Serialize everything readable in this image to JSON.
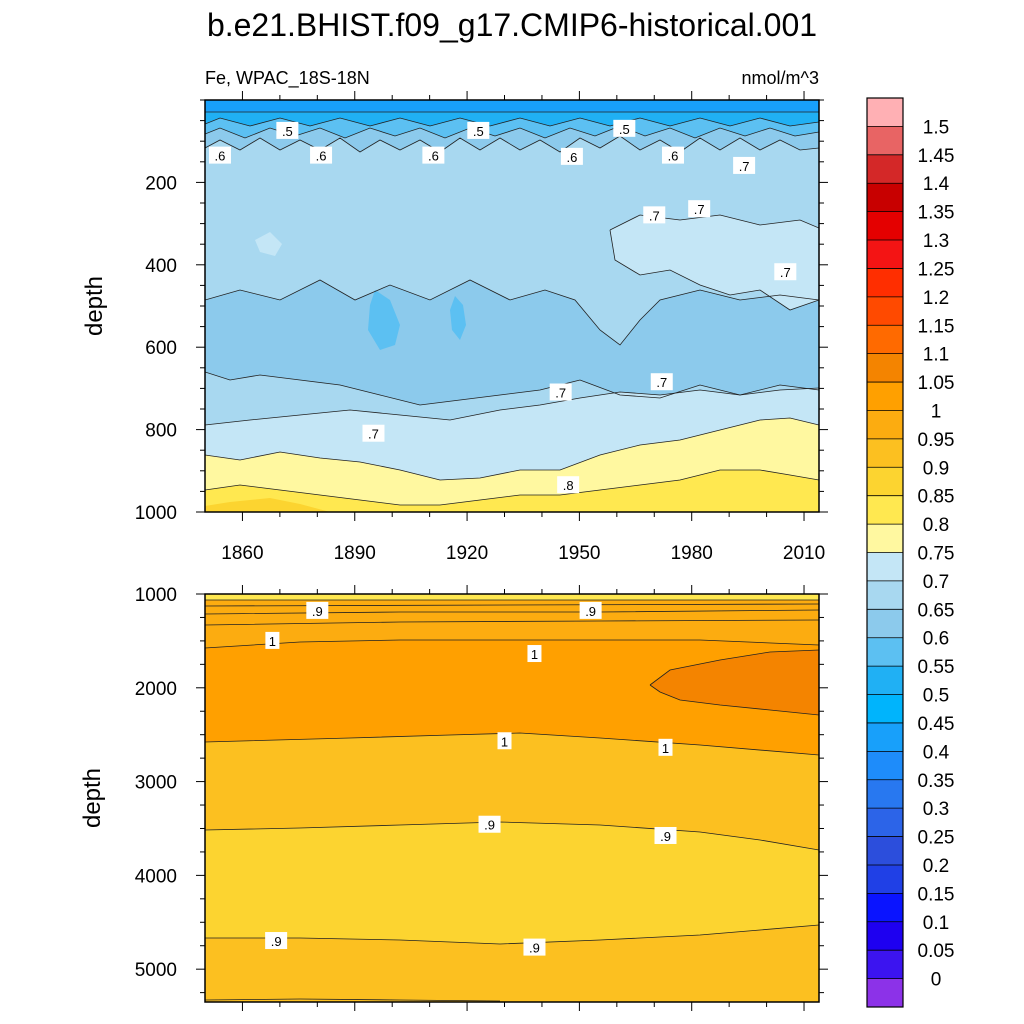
{
  "figure": {
    "title": "b.e21.BHIST.f09_g17.CMIP6-historical.001",
    "variable_label": "Fe, WPAC_18S-18N",
    "units_label": "nmol/m^3"
  },
  "chart_data": [
    {
      "type": "contour",
      "panel": "upper",
      "xlabel": "",
      "ylabel": "depth",
      "xlim": [
        1850,
        2014
      ],
      "ylim": [
        1000,
        0
      ],
      "xticks": [
        1860,
        1890,
        1920,
        1950,
        1980,
        2010
      ],
      "yticks": [
        200,
        400,
        600,
        800,
        1000
      ],
      "contour_labels": [
        {
          "text": ".5",
          "x": 1872,
          "y": 75
        },
        {
          "text": ".5",
          "x": 1923,
          "y": 75
        },
        {
          "text": ".5",
          "x": 1962,
          "y": 70
        },
        {
          "text": ".6",
          "x": 1854,
          "y": 135
        },
        {
          "text": ".6",
          "x": 1881,
          "y": 135
        },
        {
          "text": ".6",
          "x": 1911,
          "y": 135
        },
        {
          "text": ".6",
          "x": 1948,
          "y": 138
        },
        {
          "text": ".6",
          "x": 1975,
          "y": 135
        },
        {
          "text": ".7",
          "x": 1994,
          "y": 160
        },
        {
          "text": ".7",
          "x": 1970,
          "y": 280
        },
        {
          "text": ".7",
          "x": 1982,
          "y": 265
        },
        {
          "text": ".7",
          "x": 2005,
          "y": 418
        },
        {
          "text": ".7",
          "x": 1895,
          "y": 810
        },
        {
          "text": ".7",
          "x": 1945,
          "y": 710
        },
        {
          "text": ".7",
          "x": 1972,
          "y": 685
        },
        {
          "text": ".8",
          "x": 1947,
          "y": 935
        }
      ]
    },
    {
      "type": "contour",
      "panel": "lower",
      "xlabel": "",
      "ylabel": "depth",
      "xlim": [
        1850,
        2014
      ],
      "ylim": [
        5350,
        1000
      ],
      "xticks": [
        1860,
        1890,
        1920,
        1950,
        1980,
        2010
      ],
      "yticks": [
        1000,
        2000,
        3000,
        4000,
        5000
      ],
      "contour_labels": [
        {
          "text": ".9",
          "x": 1880,
          "y": 1180
        },
        {
          "text": ".9",
          "x": 1953,
          "y": 1180
        },
        {
          "text": "1",
          "x": 1868,
          "y": 1500
        },
        {
          "text": "1",
          "x": 1938,
          "y": 1640
        },
        {
          "text": "1",
          "x": 1930,
          "y": 2570
        },
        {
          "text": "1",
          "x": 1973,
          "y": 2640
        },
        {
          "text": ".9",
          "x": 1926,
          "y": 3460
        },
        {
          "text": ".9",
          "x": 1973,
          "y": 3580
        },
        {
          "text": ".9",
          "x": 1869,
          "y": 4700
        },
        {
          "text": ".9",
          "x": 1938,
          "y": 4770
        }
      ]
    }
  ],
  "colorbar": {
    "labels": [
      "1.5",
      "1.45",
      "1.4",
      "1.35",
      "1.3",
      "1.25",
      "1.2",
      "1.15",
      "1.1",
      "1.05",
      "1",
      "0.95",
      "0.9",
      "0.85",
      "0.8",
      "0.75",
      "0.7",
      "0.65",
      "0.6",
      "0.55",
      "0.5",
      "0.45",
      "0.4",
      "0.35",
      "0.3",
      "0.25",
      "0.2",
      "0.15",
      "0.1",
      "0.05",
      "0"
    ],
    "colors": [
      "#ffb0b4",
      "#e86464",
      "#d42828",
      "#c80000",
      "#e40000",
      "#f41414",
      "#ff2e00",
      "#ff4a00",
      "#ff6a00",
      "#f48400",
      "#ffa000",
      "#fcac10",
      "#fcc020",
      "#fcd430",
      "#ffe850",
      "#fff8a0",
      "#c4e6f6",
      "#a8d8f0",
      "#8ccaec",
      "#5cc0f2",
      "#20b0f4",
      "#00b4fc",
      "#18a0fa",
      "#1e8cfa",
      "#2878f0",
      "#2c64e8",
      "#2c4edc",
      "#2040e6",
      "#0a14ff",
      "#1e00f0",
      "#3c14f0",
      "#8c32e8"
    ]
  }
}
